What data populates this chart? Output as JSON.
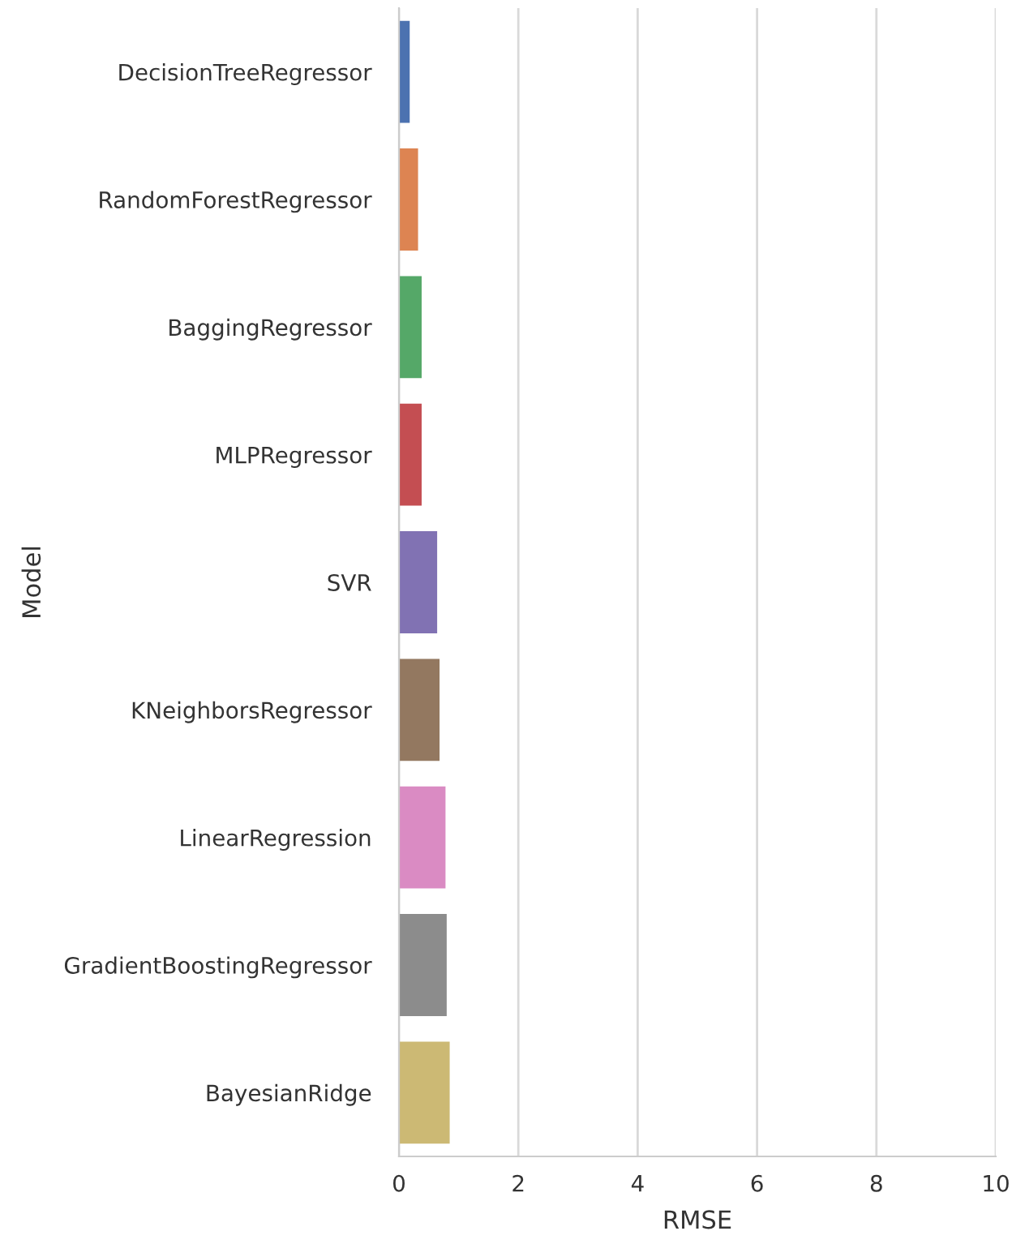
{
  "chart_data": {
    "type": "bar",
    "orientation": "horizontal",
    "xlabel": "RMSE",
    "ylabel": "Model",
    "categories": [
      "DecisionTreeRegressor",
      "RandomForestRegressor",
      "BaggingRegressor",
      "MLPRegressor",
      "SVR",
      "KNeighborsRegressor",
      "LinearRegression",
      "GradientBoostingRegressor",
      "BayesianRidge"
    ],
    "values": [
      0.18,
      0.32,
      0.38,
      0.38,
      0.64,
      0.68,
      0.78,
      0.8,
      0.85
    ],
    "colors": [
      "#4c72b0",
      "#dd8452",
      "#55a868",
      "#c44e52",
      "#8172b3",
      "#937860",
      "#da8bc3",
      "#8c8c8c",
      "#ccb974"
    ],
    "xlim": [
      0,
      10
    ],
    "xticks": [
      0,
      2,
      4,
      6,
      8,
      10
    ],
    "grid": "x"
  }
}
